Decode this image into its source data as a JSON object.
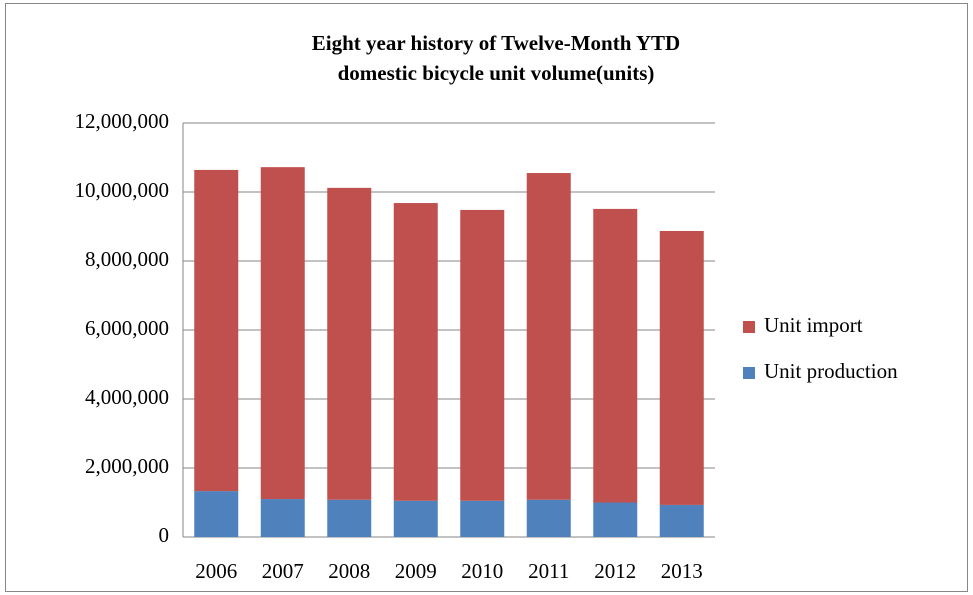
{
  "chart_data": {
    "type": "stacked_bar",
    "title": "Eight year history of Twelve-Month YTD\ndomestic bicycle unit volume(units)",
    "categories": [
      "2006",
      "2007",
      "2008",
      "2009",
      "2010",
      "2011",
      "2012",
      "2013"
    ],
    "series": [
      {
        "name": "Unit production",
        "color": "#4f81bd",
        "values": [
          1330000,
          1100000,
          1080000,
          1050000,
          1050000,
          1080000,
          1000000,
          930000
        ]
      },
      {
        "name": "Unit import",
        "color": "#c0504d",
        "values": [
          9310000,
          9620000,
          9040000,
          8630000,
          8430000,
          9470000,
          8510000,
          7940000
        ]
      }
    ],
    "ylim": [
      0,
      12000000
    ],
    "yticks": [
      0,
      {
        "value": 2000000,
        "label": "2,000,000"
      },
      {
        "value": 4000000,
        "label": "4,000,000"
      },
      {
        "value": 6000000,
        "label": "6,000,000"
      },
      {
        "value": 8000000,
        "label": "8,000,000"
      },
      {
        "value": 10000000,
        "label": "10,000,000"
      },
      {
        "value": 12000000,
        "label": "12,000,000"
      }
    ],
    "grid": true,
    "legend": "right"
  }
}
